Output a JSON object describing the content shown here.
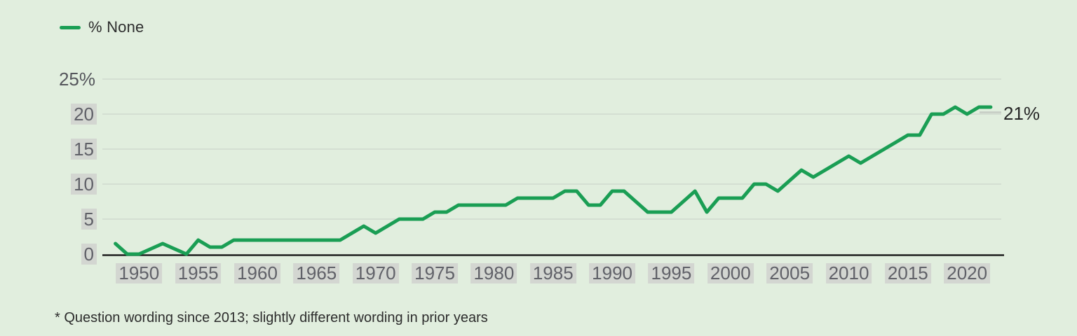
{
  "legend": {
    "label": "% None",
    "swatch_color": "#1a9e54"
  },
  "footnote": "* Question wording since 2013; slightly different wording in prior years",
  "colors": {
    "background": "#e1eede",
    "line": "#1a9e54",
    "grid": "#d0d9cd",
    "axis": "#1f1f1f",
    "tick_text": "#606168",
    "tick_box": "#d3d6d1",
    "leader": "#c6cbc4",
    "text": "#2d2d2d"
  },
  "chart_data": {
    "type": "line",
    "title": "",
    "xlabel": "",
    "ylabel": "",
    "legend": [
      "% None"
    ],
    "legend_position": "top-left",
    "grid": true,
    "ylim": [
      0,
      25
    ],
    "xlim": [
      1948,
      2022
    ],
    "y_ticks": [
      {
        "value": 25,
        "label": "25%",
        "boxed": false
      },
      {
        "value": 20,
        "label": "20",
        "boxed": true
      },
      {
        "value": 15,
        "label": "15",
        "boxed": true
      },
      {
        "value": 10,
        "label": "10",
        "boxed": true
      },
      {
        "value": 5,
        "label": "5",
        "boxed": true
      },
      {
        "value": 0,
        "label": "0",
        "boxed": true
      }
    ],
    "x_ticks": [
      "1950",
      "1955",
      "1960",
      "1965",
      "1970",
      "1975",
      "1980",
      "1985",
      "1990",
      "1995",
      "2000",
      "2005",
      "2010",
      "2015",
      "2020"
    ],
    "series": [
      {
        "name": "% None",
        "color": "#1a9e54",
        "points": [
          [
            1948,
            1.5
          ],
          [
            1949,
            0
          ],
          [
            1950,
            0
          ],
          [
            1952,
            1.5
          ],
          [
            1954,
            0
          ],
          [
            1955,
            2
          ],
          [
            1956,
            1
          ],
          [
            1957,
            1
          ],
          [
            1958,
            2
          ],
          [
            1967,
            2
          ],
          [
            1969,
            4
          ],
          [
            1970,
            3
          ],
          [
            1972,
            5
          ],
          [
            1974,
            5
          ],
          [
            1975,
            6
          ],
          [
            1976,
            6
          ],
          [
            1977,
            7
          ],
          [
            1981,
            7
          ],
          [
            1982,
            8
          ],
          [
            1985,
            8
          ],
          [
            1986,
            9
          ],
          [
            1987,
            9
          ],
          [
            1988,
            7
          ],
          [
            1989,
            7
          ],
          [
            1990,
            9
          ],
          [
            1991,
            9
          ],
          [
            1993,
            6
          ],
          [
            1995,
            6
          ],
          [
            1997,
            9
          ],
          [
            1998,
            6
          ],
          [
            1999,
            8
          ],
          [
            2001,
            8
          ],
          [
            2002,
            10
          ],
          [
            2003,
            10
          ],
          [
            2004,
            9
          ],
          [
            2006,
            12
          ],
          [
            2007,
            11
          ],
          [
            2008,
            12
          ],
          [
            2009,
            13
          ],
          [
            2010,
            14
          ],
          [
            2011,
            13
          ],
          [
            2012,
            14
          ],
          [
            2013,
            15
          ],
          [
            2014,
            16
          ],
          [
            2015,
            17
          ],
          [
            2016,
            17
          ],
          [
            2017,
            20
          ],
          [
            2018,
            20
          ],
          [
            2019,
            21
          ],
          [
            2020,
            20
          ],
          [
            2021,
            21
          ],
          [
            2022,
            21
          ]
        ]
      }
    ],
    "end_annotation": {
      "text": "21%",
      "value": 21,
      "year": 2022
    }
  }
}
